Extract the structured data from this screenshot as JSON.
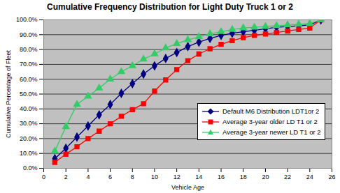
{
  "chart_data": {
    "type": "line",
    "title": "Cumulative Frequency Distribution for Light Duty Truck 1 or 2",
    "x_label": "Vehicle Age",
    "y_label": "Cumulative Percentage of Fleet",
    "x": [
      1,
      2,
      3,
      4,
      5,
      6,
      7,
      8,
      9,
      10,
      11,
      12,
      13,
      14,
      15,
      16,
      17,
      18,
      19,
      20,
      21,
      22,
      23,
      24,
      25
    ],
    "series": [
      {
        "name": "Default M6 Distribution LDT1or 2",
        "color": "#000080",
        "marker": "diamond",
        "values": [
          6.5,
          13.5,
          21,
          28.5,
          36,
          43,
          50.5,
          57,
          63.5,
          69,
          74,
          78,
          82,
          85,
          87.5,
          89.5,
          91,
          92,
          93,
          94,
          95,
          95.5,
          96,
          96.5,
          100
        ]
      },
      {
        "name": "Average 3-year older LD T1 or 2",
        "color": "#ff0000",
        "marker": "square",
        "values": [
          4,
          9.5,
          14.5,
          20,
          25,
          30,
          35,
          39.5,
          43.5,
          52,
          59.5,
          66.5,
          72.5,
          77,
          80.5,
          83.5,
          86,
          88,
          89.5,
          90.5,
          91.5,
          92.5,
          93.5,
          94.5,
          100
        ]
      },
      {
        "name": "Average 3-year newer LD T1 or 2",
        "color": "#33cc66",
        "marker": "triangle",
        "values": [
          11.5,
          28,
          43,
          48.5,
          54,
          60,
          65,
          69,
          73.5,
          77,
          81,
          84,
          86.5,
          88.5,
          90.5,
          92,
          93.5,
          94.5,
          95,
          95.5,
          96,
          96.5,
          97,
          97.5,
          100
        ]
      }
    ],
    "xlim": [
      0,
      26
    ],
    "xticks": [
      0,
      2,
      4,
      6,
      8,
      10,
      12,
      14,
      16,
      18,
      20,
      22,
      24,
      26
    ],
    "ylim": [
      0,
      100
    ],
    "yticks": [
      {
        "value": 0,
        "label": "0.0%"
      },
      {
        "value": 10,
        "label": "10.0%"
      },
      {
        "value": 20,
        "label": "20.0%"
      },
      {
        "value": 30,
        "label": "30.0%"
      },
      {
        "value": 40,
        "label": "40.0%"
      },
      {
        "value": 50,
        "label": "50.0%"
      },
      {
        "value": 60,
        "label": "60.0%"
      },
      {
        "value": 70,
        "label": "70.0%"
      },
      {
        "value": 80,
        "label": "80.0%"
      },
      {
        "value": 90,
        "label": "90.0%"
      },
      {
        "value": 100,
        "label": "100.0%"
      }
    ],
    "grid": true,
    "legend": "right"
  }
}
